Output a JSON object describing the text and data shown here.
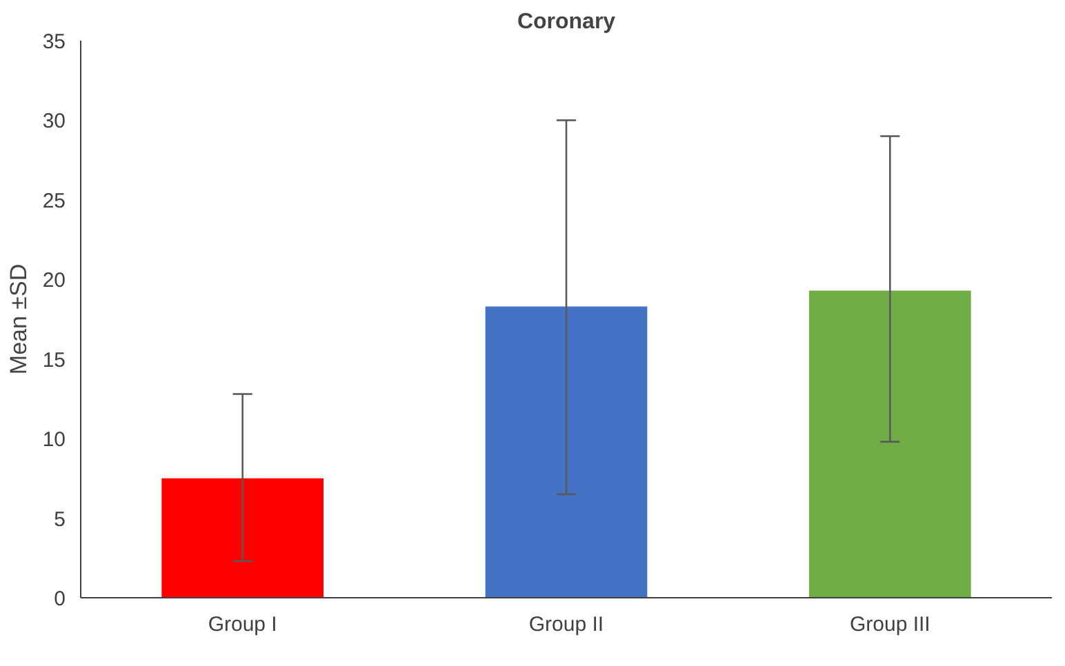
{
  "chart_data": {
    "type": "bar",
    "title": "Coronary",
    "ylabel": "Mean ±SD",
    "categories": [
      "Group I",
      "Group II",
      "Group III"
    ],
    "values": [
      7.5,
      18.3,
      19.3
    ],
    "colors": [
      "#ff0000",
      "#4472c4",
      "#70ad47"
    ],
    "errors": [
      [
        2.3,
        12.8
      ],
      [
        6.5,
        30.0
      ],
      [
        9.8,
        29.0
      ]
    ],
    "ylim": [
      0,
      35
    ],
    "yticks": [
      0,
      5,
      10,
      15,
      20,
      25,
      30,
      35
    ],
    "grid": false
  }
}
